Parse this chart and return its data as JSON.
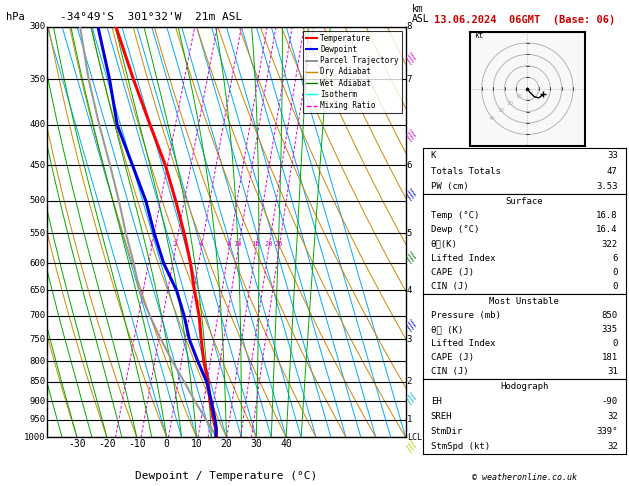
{
  "title_left": "-34°49'S  301°32'W  21m ASL",
  "title_right": "13.06.2024  06GMT  (Base: 06)",
  "xlabel": "Dewpoint / Temperature (°C)",
  "isotherm_color": "#00aaff",
  "dry_adiabat_color": "#cc8800",
  "wet_adiabat_color": "#00aa00",
  "mixing_ratio_color": "#dd00dd",
  "temp_profile_color": "#ff0000",
  "dewp_profile_color": "#0000dd",
  "parcel_color": "#999999",
  "temp_data": {
    "pressure": [
      1000,
      975,
      950,
      925,
      900,
      850,
      800,
      750,
      700,
      650,
      600,
      550,
      500,
      450,
      400,
      350,
      300
    ],
    "temp": [
      16.8,
      15.5,
      14.0,
      12.5,
      11.0,
      8.5,
      5.0,
      2.0,
      -1.0,
      -5.0,
      -9.0,
      -14.0,
      -20.0,
      -27.0,
      -36.0,
      -46.0,
      -57.0
    ]
  },
  "dewp_data": {
    "pressure": [
      1000,
      975,
      950,
      925,
      900,
      850,
      800,
      750,
      700,
      650,
      600,
      550,
      500,
      450,
      400,
      350,
      300
    ],
    "dewp": [
      16.4,
      15.8,
      14.5,
      13.0,
      11.5,
      8.0,
      3.0,
      -2.0,
      -6.0,
      -11.0,
      -18.0,
      -24.0,
      -30.0,
      -38.0,
      -47.0,
      -54.0,
      -63.0
    ]
  },
  "parcel_data": {
    "pressure": [
      1000,
      975,
      950,
      925,
      900,
      850,
      800,
      750,
      700,
      650,
      600,
      550,
      500,
      450,
      400,
      350,
      300
    ],
    "temp": [
      16.8,
      14.2,
      11.5,
      8.8,
      6.0,
      0.5,
      -5.5,
      -11.5,
      -17.5,
      -23.5,
      -28.0,
      -33.5,
      -39.0,
      -45.5,
      -53.0,
      -61.0,
      -69.0
    ]
  },
  "mixing_ratio_values": [
    1,
    2,
    4,
    8,
    10,
    15,
    20,
    25
  ],
  "footer": "© weatheronline.co.uk"
}
